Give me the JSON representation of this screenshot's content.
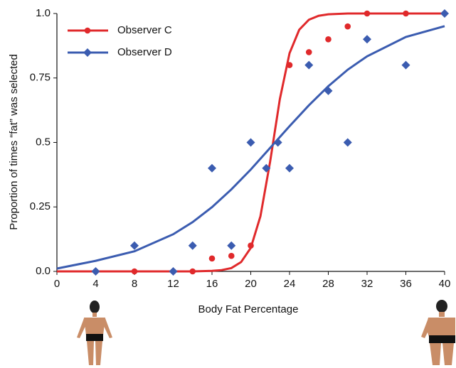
{
  "chart_data": {
    "type": "scatter",
    "x_label": "Body Fat Percentage",
    "y_label": "Proportion of times “fat” was selected",
    "xlim": [
      0,
      40
    ],
    "xticks": [
      0,
      4,
      8,
      12,
      16,
      20,
      24,
      28,
      32,
      36,
      40
    ],
    "ylim": [
      0,
      1
    ],
    "yticks": [
      {
        "value": 0,
        "label": "0.0"
      },
      0.25,
      0.5,
      0.75,
      {
        "value": 1,
        "label": "1.0"
      }
    ],
    "legend": "upper left",
    "series": [
      {
        "name": "Observer C",
        "color": "#e0292b",
        "marker": "circle",
        "x": [
          4,
          8,
          12,
          14,
          16,
          18,
          20,
          24,
          26,
          28,
          30,
          32,
          36,
          40
        ],
        "values": [
          0,
          0,
          0,
          0,
          0.05,
          0.06,
          0.1,
          0.8,
          0.85,
          0.9,
          0.95,
          1,
          1,
          1
        ],
        "fit_x": [
          0,
          4,
          8,
          12,
          14,
          15,
          16,
          17,
          18,
          19,
          20,
          21,
          22,
          23,
          24,
          25,
          26,
          27,
          28,
          30,
          32,
          36,
          40
        ],
        "fit_values": [
          0,
          0,
          0,
          0,
          0,
          0.001,
          0.002,
          0.005,
          0.013,
          0.036,
          0.091,
          0.214,
          0.426,
          0.668,
          0.846,
          0.937,
          0.976,
          0.991,
          0.997,
          1,
          1,
          1,
          1
        ]
      },
      {
        "name": "Observer D",
        "color": "#3b5cb0",
        "marker": "diamond",
        "x": [
          4,
          8,
          12,
          14,
          16,
          18,
          20,
          21.6,
          22.8,
          24,
          26,
          28,
          30,
          32,
          36,
          40
        ],
        "values": [
          0,
          0.1,
          0,
          0.1,
          0.4,
          0.1,
          0.5,
          0.4,
          0.5,
          0.4,
          0.8,
          0.7,
          0.5,
          0.9,
          0.8,
          1
        ],
        "fit_x": [
          0,
          4,
          8,
          12,
          14,
          16,
          18,
          20,
          22,
          24,
          26,
          28,
          30,
          32,
          36,
          40
        ],
        "fit_values": [
          0.011,
          0.041,
          0.078,
          0.144,
          0.191,
          0.249,
          0.318,
          0.395,
          0.479,
          0.563,
          0.644,
          0.718,
          0.782,
          0.834,
          0.909,
          0.951
        ]
      }
    ]
  }
}
